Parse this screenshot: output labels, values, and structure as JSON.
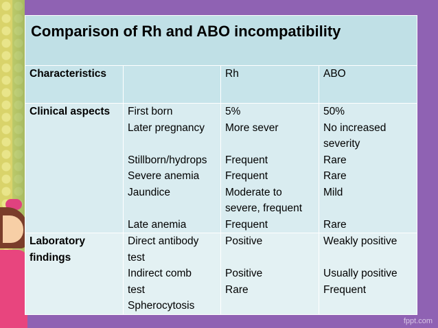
{
  "title": "Comparison of Rh and ABO incompatibility",
  "headers": [
    "Characteristics",
    "",
    "Rh",
    "ABO"
  ],
  "clinical": {
    "label": "Clinical aspects",
    "items": [
      [
        "First born",
        "Later pregnancy",
        "",
        "Stillborn/hydrops",
        "Severe anemia",
        "Jaundice",
        "",
        "Late anemia"
      ],
      [
        "5%",
        "More sever",
        "",
        "Frequent",
        "Frequent",
        "Moderate to",
        "severe, frequent",
        "Frequent"
      ],
      [
        "50%",
        "No increased",
        "severity",
        "Rare",
        "Rare",
        "Mild",
        "",
        "Rare"
      ]
    ]
  },
  "lab": {
    "label_line1": "Laboratory",
    "label_line2": "findings",
    "items": [
      [
        "Direct antibody",
        "test",
        "Indirect comb",
        "test",
        "Spherocytosis"
      ],
      [
        "Positive",
        "",
        "Positive",
        "Rare",
        ""
      ],
      [
        "Weakly positive",
        "",
        "Usually positive",
        "Frequent",
        ""
      ]
    ]
  },
  "watermark": "fppt.com"
}
